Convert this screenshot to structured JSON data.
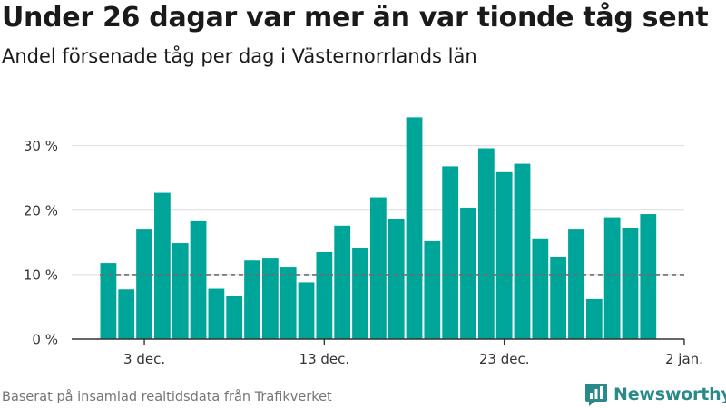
{
  "header": {
    "title": "Under 26 dagar var mer än var tionde tåg sent",
    "subtitle": "Andel försenade tåg per dag i Västernorrlands län"
  },
  "footer": {
    "source": "Baserat på insamlad realtidsdata från Trafikverket",
    "brand": "Newsworthy",
    "brand_icon": "chart-logo-icon"
  },
  "colors": {
    "bar": "#00a59a",
    "grid": "#dcdcdc",
    "reference_line": "#6e6e6e",
    "brand": "#2a8a8a"
  },
  "chart_data": {
    "type": "bar",
    "title": "Under 26 dagar var mer än var tionde tåg sent",
    "subtitle": "Andel försenade tåg per dag i Västernorrlands län",
    "x": [
      "2023-12-01",
      "2023-12-02",
      "2023-12-03",
      "2023-12-04",
      "2023-12-05",
      "2023-12-06",
      "2023-12-07",
      "2023-12-08",
      "2023-12-09",
      "2023-12-10",
      "2023-12-11",
      "2023-12-12",
      "2023-12-13",
      "2023-12-14",
      "2023-12-15",
      "2023-12-16",
      "2023-12-17",
      "2023-12-18",
      "2023-12-19",
      "2023-12-20",
      "2023-12-21",
      "2023-12-22",
      "2023-12-23",
      "2023-12-24",
      "2023-12-25",
      "2023-12-26",
      "2023-12-27",
      "2023-12-28",
      "2023-12-29",
      "2023-12-30",
      "2023-12-31"
    ],
    "values": [
      11.8,
      7.7,
      17.0,
      22.7,
      14.9,
      18.3,
      7.8,
      6.7,
      12.2,
      12.5,
      11.1,
      8.8,
      13.5,
      17.6,
      14.2,
      22.0,
      18.6,
      34.4,
      15.2,
      26.8,
      20.4,
      29.6,
      25.9,
      27.2,
      15.5,
      12.7,
      17.0,
      6.2,
      18.9,
      17.3,
      19.4
    ],
    "x_tick_labels": [
      {
        "x": "2023-12-03",
        "label": "3 dec."
      },
      {
        "x": "2023-12-13",
        "label": "13 dec."
      },
      {
        "x": "2023-12-23",
        "label": "23 dec."
      },
      {
        "x": "2024-01-02",
        "label": "2 jan."
      }
    ],
    "y_ticks": [
      0,
      10,
      20,
      30
    ],
    "y_tick_labels": [
      "0 %",
      "10 %",
      "20 %",
      "30 %"
    ],
    "ylim": [
      0,
      36
    ],
    "reference_line": {
      "y": 10,
      "style": "dashed"
    },
    "grid": true,
    "legend": "none"
  }
}
